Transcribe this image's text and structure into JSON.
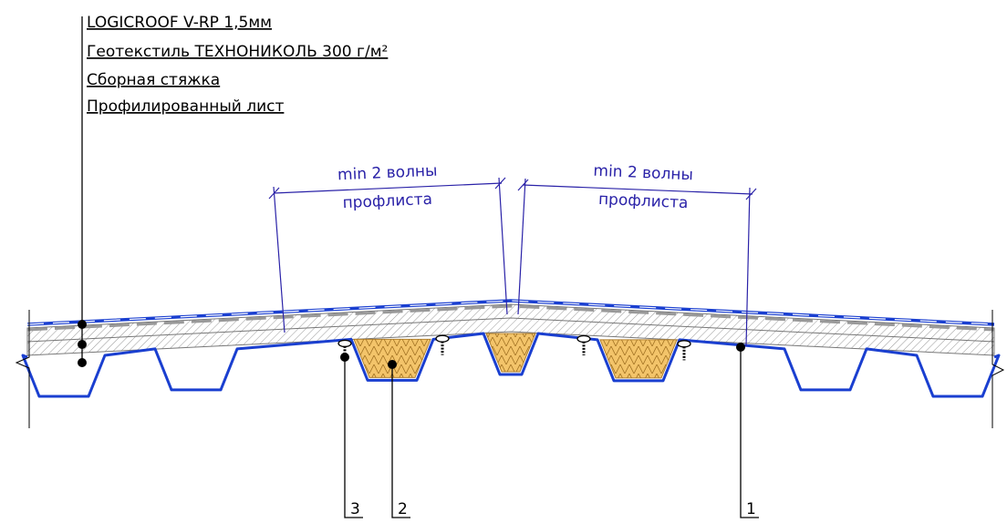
{
  "layers": [
    "LOGICROOF V-RP 1,5мм",
    "Геотекстиль ТЕХНОНИКОЛЬ 300 г/м²",
    "Сборная стяжка",
    "Профилированный лист"
  ],
  "dimensions": [
    {
      "line1": "min 2 волны",
      "line2": "профлиста"
    },
    {
      "line1": "min 2 волны",
      "line2": "профлиста"
    }
  ],
  "callouts": [
    "3",
    "2",
    "1"
  ]
}
